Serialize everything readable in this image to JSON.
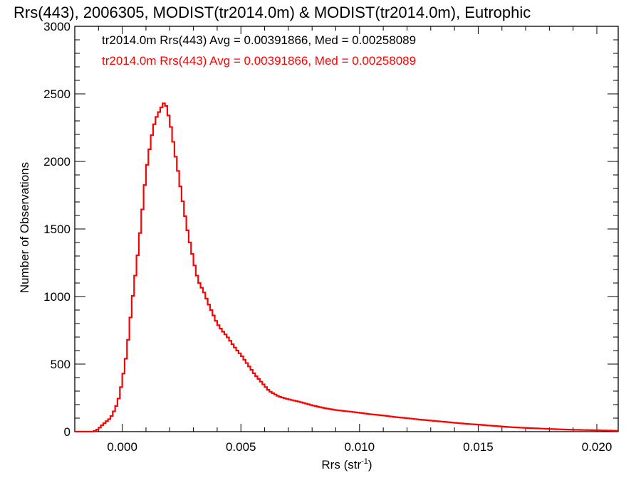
{
  "chart_data": {
    "type": "histogram-step",
    "title": "Rrs(443), 2006305, MODIST(tr2014.0m) & MODIST(tr2014.0m), Eutrophic",
    "xlabel": "Rrs (str",
    "xlabel_sup": "-1",
    "xlabel_close": ")",
    "ylabel": "Number of Observations",
    "xlim": [
      -0.002,
      0.0209
    ],
    "ylim": [
      0,
      3000
    ],
    "x_ticks": [
      0.0,
      0.005,
      0.01,
      0.015,
      0.02
    ],
    "x_tick_labels": [
      "0.000",
      "0.005",
      "0.010",
      "0.015",
      "0.020"
    ],
    "y_ticks": [
      0,
      500,
      1000,
      1500,
      2000,
      2500,
      3000
    ],
    "y_tick_labels": [
      "0",
      "500",
      "1000",
      "1500",
      "2000",
      "2500",
      "3000"
    ],
    "grid": false,
    "annotations": [
      {
        "text": "tr2014.0m Rrs(443) Avg = 0.00391866, Med = 0.00258089",
        "color": "#000000"
      },
      {
        "text": "tr2014.0m Rrs(443) Avg = 0.00391866, Med = 0.00258089",
        "color": "#ff0000"
      }
    ],
    "series": [
      {
        "color": "#ff0000",
        "points": [
          [
            -0.002,
            0
          ],
          [
            -0.0012,
            0
          ],
          [
            -0.0011,
            10
          ],
          [
            -0.001,
            20
          ],
          [
            -0.0009,
            40
          ],
          [
            -0.0008,
            55
          ],
          [
            -0.0007,
            70
          ],
          [
            -0.0006,
            85
          ],
          [
            -0.0005,
            100
          ],
          [
            -0.0004,
            130
          ],
          [
            -0.0003,
            170
          ],
          [
            -0.0002,
            210
          ],
          [
            -0.0001,
            280
          ],
          [
            0.0,
            380
          ],
          [
            0.0001,
            480
          ],
          [
            0.0002,
            600
          ],
          [
            0.0003,
            760
          ],
          [
            0.0004,
            930
          ],
          [
            0.0005,
            1080
          ],
          [
            0.0006,
            1230
          ],
          [
            0.0007,
            1380
          ],
          [
            0.0008,
            1560
          ],
          [
            0.0009,
            1730
          ],
          [
            0.001,
            1920
          ],
          [
            0.0011,
            2030
          ],
          [
            0.0012,
            2150
          ],
          [
            0.0013,
            2240
          ],
          [
            0.0014,
            2310
          ],
          [
            0.0015,
            2350
          ],
          [
            0.0016,
            2380
          ],
          [
            0.0017,
            2420
          ],
          [
            0.0018,
            2440
          ],
          [
            0.0019,
            2380
          ],
          [
            0.002,
            2300
          ],
          [
            0.0021,
            2210
          ],
          [
            0.0022,
            2080
          ],
          [
            0.0023,
            1990
          ],
          [
            0.0024,
            1870
          ],
          [
            0.0025,
            1760
          ],
          [
            0.0026,
            1650
          ],
          [
            0.0027,
            1540
          ],
          [
            0.0028,
            1440
          ],
          [
            0.0029,
            1360
          ],
          [
            0.003,
            1270
          ],
          [
            0.0031,
            1190
          ],
          [
            0.0032,
            1120
          ],
          [
            0.0033,
            1080
          ],
          [
            0.0034,
            1050
          ],
          [
            0.0035,
            1010
          ],
          [
            0.0036,
            960
          ],
          [
            0.0037,
            920
          ],
          [
            0.0038,
            880
          ],
          [
            0.0039,
            840
          ],
          [
            0.004,
            800
          ],
          [
            0.0042,
            750
          ],
          [
            0.0044,
            710
          ],
          [
            0.0046,
            660
          ],
          [
            0.0048,
            610
          ],
          [
            0.005,
            570
          ],
          [
            0.0052,
            520
          ],
          [
            0.0054,
            470
          ],
          [
            0.0056,
            420
          ],
          [
            0.0058,
            380
          ],
          [
            0.006,
            340
          ],
          [
            0.0062,
            300
          ],
          [
            0.0064,
            280
          ],
          [
            0.0066,
            260
          ],
          [
            0.007,
            240
          ],
          [
            0.0075,
            220
          ],
          [
            0.008,
            195
          ],
          [
            0.0085,
            175
          ],
          [
            0.009,
            160
          ],
          [
            0.0095,
            150
          ],
          [
            0.01,
            140
          ],
          [
            0.0105,
            128
          ],
          [
            0.011,
            120
          ],
          [
            0.0115,
            108
          ],
          [
            0.012,
            100
          ],
          [
            0.0125,
            90
          ],
          [
            0.013,
            82
          ],
          [
            0.0135,
            74
          ],
          [
            0.014,
            66
          ],
          [
            0.0145,
            58
          ],
          [
            0.015,
            52
          ],
          [
            0.0155,
            45
          ],
          [
            0.016,
            38
          ],
          [
            0.0165,
            32
          ],
          [
            0.017,
            28
          ],
          [
            0.0175,
            24
          ],
          [
            0.018,
            20
          ],
          [
            0.0185,
            17
          ],
          [
            0.019,
            14
          ],
          [
            0.0195,
            12
          ],
          [
            0.02,
            10
          ],
          [
            0.0205,
            8
          ],
          [
            0.0209,
            6
          ]
        ]
      }
    ]
  }
}
